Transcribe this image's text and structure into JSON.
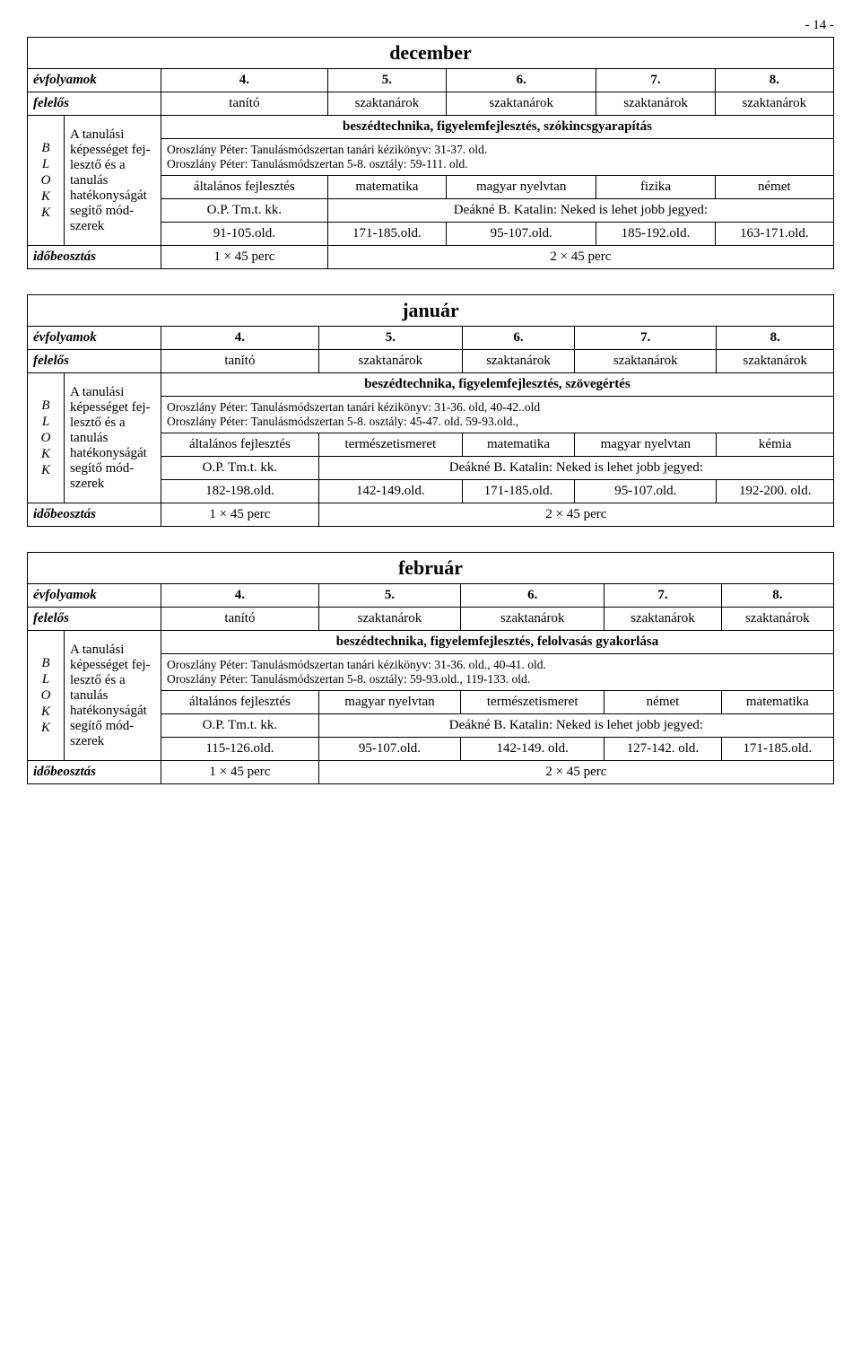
{
  "pageNumber": "- 14 -",
  "blokkLetters": [
    "B",
    "L",
    "O",
    "K",
    "K"
  ],
  "labels": {
    "evfolyamok": "évfolyamok",
    "felelos": "felelős",
    "idobeosztas": "időbeosztás",
    "sideDesc": "A tanulási képessé­get fej­lesztő és a tanulás hatékony­ságát se­gítő mód­szerek",
    "tanito": "tanító",
    "szaktanarok": "szaktanárok",
    "tmtkk": "O.P. Tm.t. kk.",
    "altfejl": "általános fejlesztés",
    "deakne": "Deákné B. Katalin: Neked is lehet jobb jegyed:",
    "t1": "1 × 45 perc",
    "t2": "2 × 45 perc"
  },
  "grades": [
    "4.",
    "5.",
    "6.",
    "7.",
    "8."
  ],
  "months": {
    "dec": {
      "title": "december",
      "theme": "beszédtechnika, figyelemfejlesztés, szókincsgyarapítás",
      "src1": "Oroszlány Péter: Tanulásmódszertan tanári kézikönyv: 31-37. old.",
      "src2": "Oroszlány Péter: Tanulásmódszertan 5-8. osztály: 59-111. old.",
      "subjects": [
        "matematika",
        "magyar nyelvtan",
        "fizika",
        "német"
      ],
      "pages": [
        "91-105.old.",
        "171-185.old.",
        "95-107.old.",
        "185-192.old.",
        "163-171.old."
      ]
    },
    "jan": {
      "title": "január",
      "theme": "beszédtechnika, figyelemfejlesztés, szövegértés",
      "src1": "Oroszlány Péter: Tanulásmódszertan tanári kézikönyv: 31-36. old, 40-42..old",
      "src2": "Oroszlány Péter: Tanulásmódszertan 5-8. osztály: 45-47. old. 59-93.old.,",
      "subjects": [
        "természet­ismeret",
        "matematika",
        "magyar nyelvtan",
        "kémia"
      ],
      "pages": [
        "182-198.old.",
        "142-149.old.",
        "171-185.old.",
        "95-107.old.",
        "192-200. old."
      ]
    },
    "feb": {
      "title": "február",
      "theme": "beszédtechnika, figyelemfejlesztés, felolvasás gyakorlása",
      "src1": "Oroszlány Péter: Tanulásmódszertan tanári kézikönyv: 31-36. old., 40-41. old.",
      "src2": "Oroszlány Péter: Tanulásmódszertan 5-8. osztály: 59-93.old., 119-133. old.",
      "subjects": [
        "magyar nyelvtan",
        "természet­ismeret",
        "német",
        "matematika"
      ],
      "pages": [
        "115-126.old.",
        "95-107.old.",
        "142-149. old.",
        "127-142. old.",
        "171-185.old."
      ]
    }
  }
}
